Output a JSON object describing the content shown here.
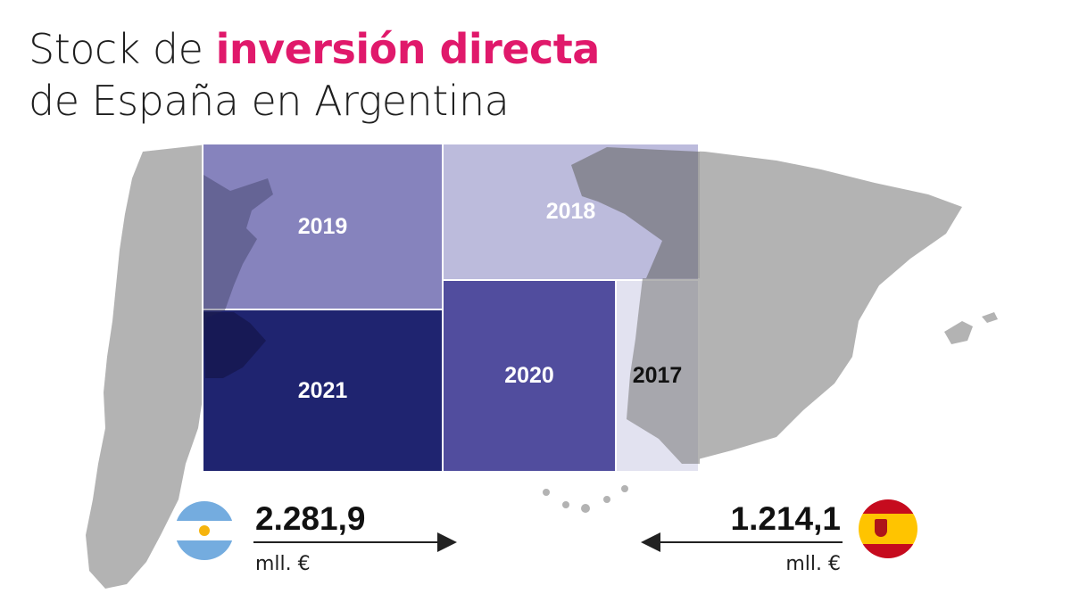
{
  "title": {
    "part1": "Stock de ",
    "highlight": "inversión directa",
    "line2": "de España en Argentina"
  },
  "chart_data": {
    "type": "treemap",
    "title": "Stock de inversión directa de España en Argentina",
    "cells": [
      {
        "label": "2021",
        "color": "#1f2470",
        "text_color": "#ffffff"
      },
      {
        "label": "2019",
        "color": "#8683bd",
        "text_color": "#ffffff"
      },
      {
        "label": "2018",
        "color": "#bcbbdc",
        "text_color": "#ffffff"
      },
      {
        "label": "2020",
        "color": "#514d9e",
        "text_color": "#ffffff"
      },
      {
        "label": "2017",
        "color": "#e2e2f0",
        "text_color": "#111111"
      }
    ]
  },
  "stats": {
    "argentina": {
      "value": "2.281,9",
      "unit": "mll. €",
      "flag": "argentina-flag-icon",
      "arrow": "arrow-right-icon"
    },
    "spain": {
      "value": "1.214,1",
      "unit": "mll. €",
      "flag": "spain-flag-icon",
      "arrow": "arrow-left-icon"
    }
  },
  "colors": {
    "accent": "#e0196b",
    "map_gray": "#b3b3b3"
  }
}
